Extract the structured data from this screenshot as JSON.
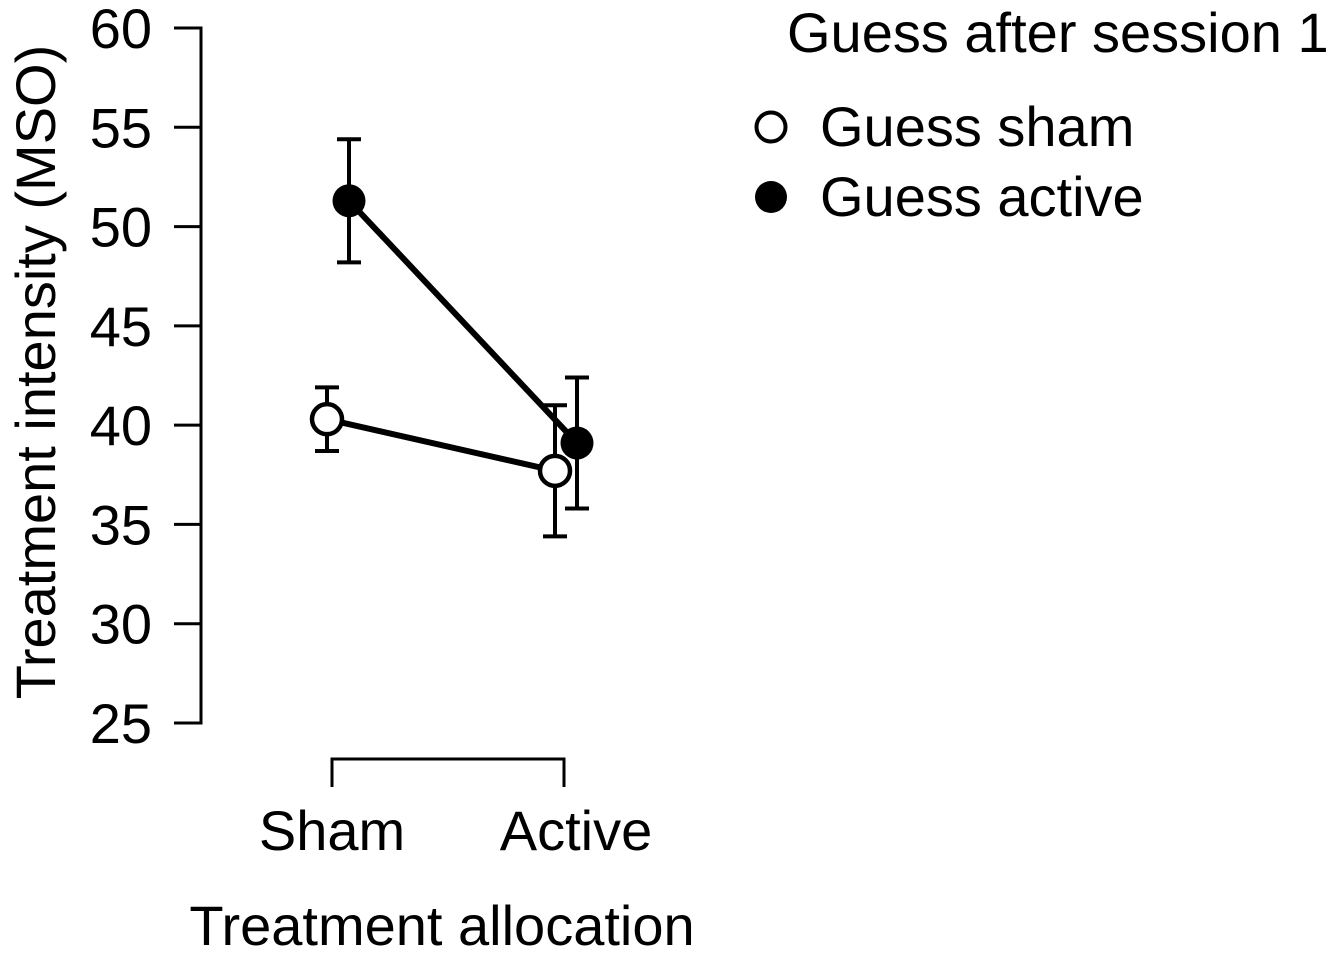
{
  "colors": {
    "ink": "#000000",
    "background": "#ffffff"
  },
  "chart_data": {
    "type": "line",
    "title": "",
    "xlabel": "Treatment allocation",
    "ylabel": "Treatment intensity (MSO)",
    "categories": [
      "Sham",
      "Active"
    ],
    "ylim": [
      25,
      60
    ],
    "yticks": [
      25,
      30,
      35,
      40,
      45,
      50,
      55,
      60
    ],
    "grid": false,
    "error_bars": true,
    "legend": {
      "title": "Guess after session 1",
      "position": "top-right",
      "entries": [
        {
          "label": "Guess sham",
          "marker": "open-circle"
        },
        {
          "label": "Guess active",
          "marker": "filled-circle"
        }
      ]
    },
    "series": [
      {
        "name": "Guess sham",
        "marker": "open-circle",
        "values": [
          40.3,
          37.7
        ],
        "error_low": [
          38.7,
          34.4
        ],
        "error_high": [
          41.9,
          41.0
        ]
      },
      {
        "name": "Guess active",
        "marker": "filled-circle",
        "values": [
          51.3,
          39.1
        ],
        "error_low": [
          48.2,
          35.8
        ],
        "error_high": [
          54.4,
          42.4
        ]
      }
    ]
  }
}
